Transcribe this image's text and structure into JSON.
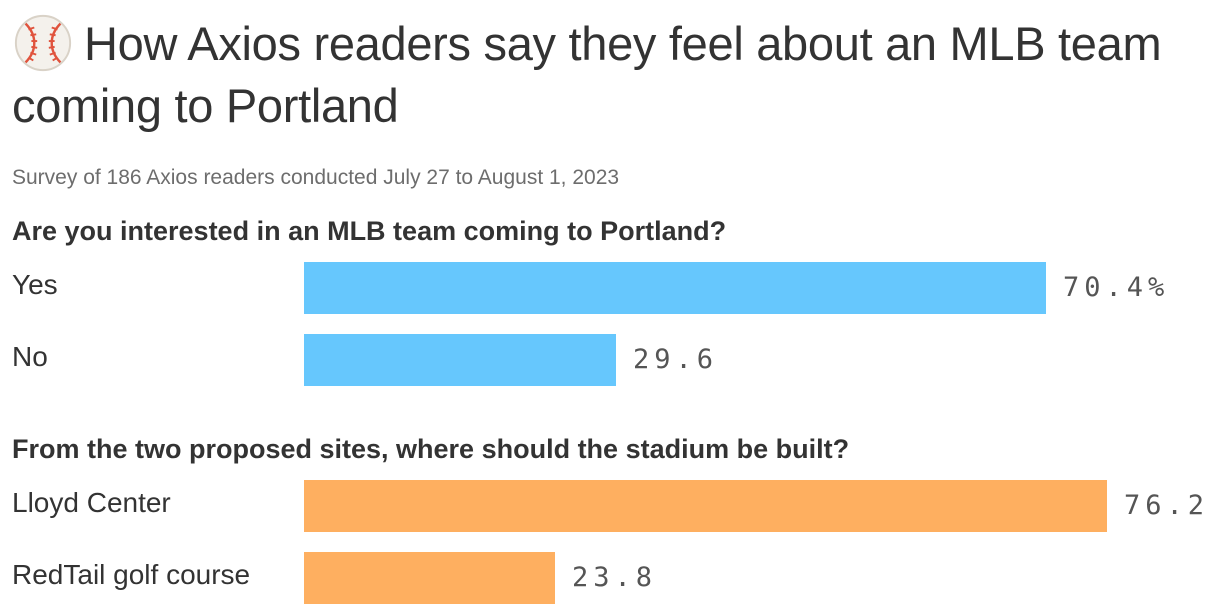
{
  "title": "How Axios readers say they feel about an MLB team coming to Portland",
  "subtitle": "Survey of 186 Axios readers conducted July 27 to August 1, 2023",
  "icon": "baseball-icon",
  "colors": {
    "blue": "#66c7fd",
    "orange": "#feaf60"
  },
  "chart_data": [
    {
      "type": "bar",
      "orientation": "horizontal",
      "title": "Are you interested in an MLB team coming to Portland?",
      "categories": [
        "Yes",
        "No"
      ],
      "values": [
        70.4,
        29.6
      ],
      "value_labels": [
        "70.4%",
        "29.6"
      ],
      "xlim": [
        0,
        100
      ],
      "color": "#66c7fd"
    },
    {
      "type": "bar",
      "orientation": "horizontal",
      "title": "From the two proposed sites, where should the stadium be built?",
      "categories": [
        "Lloyd Center",
        "RedTail golf course"
      ],
      "values": [
        76.2,
        23.8
      ],
      "value_labels": [
        "76.2",
        "23.8"
      ],
      "xlim": [
        0,
        100
      ],
      "color": "#feaf60"
    }
  ]
}
